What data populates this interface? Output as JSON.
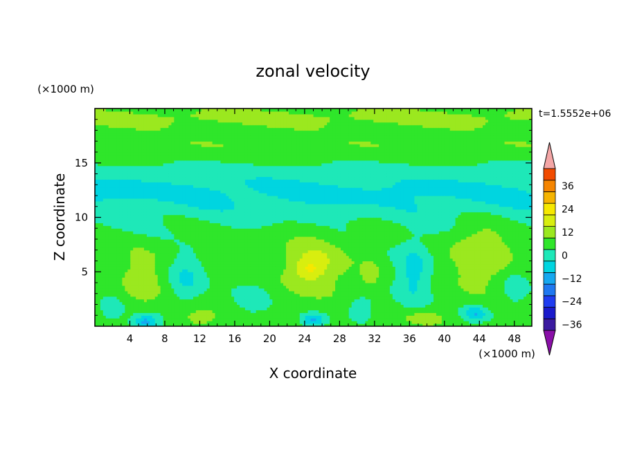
{
  "chart_data": {
    "type": "heatmap",
    "title": "zonal velocity",
    "xlabel": "X coordinate",
    "ylabel": "Z coordinate",
    "x_unit": "(×1000 m)",
    "y_unit": "(×1000 m)",
    "time_label": "t=1.5552e+06",
    "xlim": [
      0,
      50
    ],
    "ylim": [
      0,
      20
    ],
    "xticks": [
      4,
      8,
      12,
      16,
      20,
      24,
      28,
      32,
      36,
      40,
      44,
      48
    ],
    "yticks": [
      5,
      10,
      15
    ],
    "colorbar": {
      "ticks": [
        36,
        24,
        12,
        0,
        -12,
        -24,
        -36
      ],
      "levels": [
        -42,
        -36,
        -30,
        -24,
        -18,
        -12,
        -6,
        0,
        6,
        12,
        18,
        24,
        30,
        36,
        42
      ],
      "colors": [
        "#7b0f9e",
        "#3b1aa0",
        "#1a1acb",
        "#1f3cf0",
        "#1f78f0",
        "#16a8f0",
        "#00d5e0",
        "#1ee8b8",
        "#2fe62a",
        "#9be81f",
        "#d8ee0f",
        "#f6e800",
        "#f6b400",
        "#f58500",
        "#f24b00",
        "#e81a10"
      ],
      "over_color": "#f4a6a6",
      "under_color": "#8a0fa8"
    },
    "blobs": [
      {
        "x": 25,
        "z": 5.6,
        "sx": 3.6,
        "sz": 2.6,
        "v": 10
      },
      {
        "x": 24.5,
        "z": 5.3,
        "sx": 1.6,
        "sz": 0.9,
        "v": 8
      },
      {
        "x": 44,
        "z": 6.5,
        "sx": 3.4,
        "sz": 3.0,
        "v": 9
      },
      {
        "x": 5.5,
        "z": 4.5,
        "sx": 2.2,
        "sz": 2.5,
        "v": 8
      },
      {
        "x": 10.5,
        "z": 4.5,
        "sx": 2.0,
        "sz": 2.2,
        "v": -9
      },
      {
        "x": 36.5,
        "z": 5.0,
        "sx": 2.0,
        "sz": 3.2,
        "v": -11
      },
      {
        "x": 31.5,
        "z": 4.8,
        "sx": 1.0,
        "sz": 1.4,
        "v": 7
      },
      {
        "x": 5.8,
        "z": 0.4,
        "sx": 1.5,
        "sz": 0.7,
        "v": -17
      },
      {
        "x": 25,
        "z": 0.6,
        "sx": 1.3,
        "sz": 0.6,
        "v": -15
      },
      {
        "x": 43.5,
        "z": 1.2,
        "sx": 1.4,
        "sz": 0.7,
        "v": -14
      },
      {
        "x": 12,
        "z": 0.8,
        "sx": 2.2,
        "sz": 0.9,
        "v": 7
      },
      {
        "x": 37.5,
        "z": 0.8,
        "sx": 2.4,
        "sz": 0.8,
        "v": 7
      },
      {
        "x": 2,
        "z": 1.5,
        "sx": 1.5,
        "sz": 1.2,
        "v": -6
      },
      {
        "x": 48,
        "z": 3.5,
        "sx": 1.5,
        "sz": 1.5,
        "v": -7
      },
      {
        "x": 18,
        "z": 2.5,
        "sx": 2.2,
        "sz": 1.8,
        "v": -5
      },
      {
        "x": 30.5,
        "z": 1.8,
        "sx": 1.8,
        "sz": 1.2,
        "v": -6
      }
    ]
  }
}
